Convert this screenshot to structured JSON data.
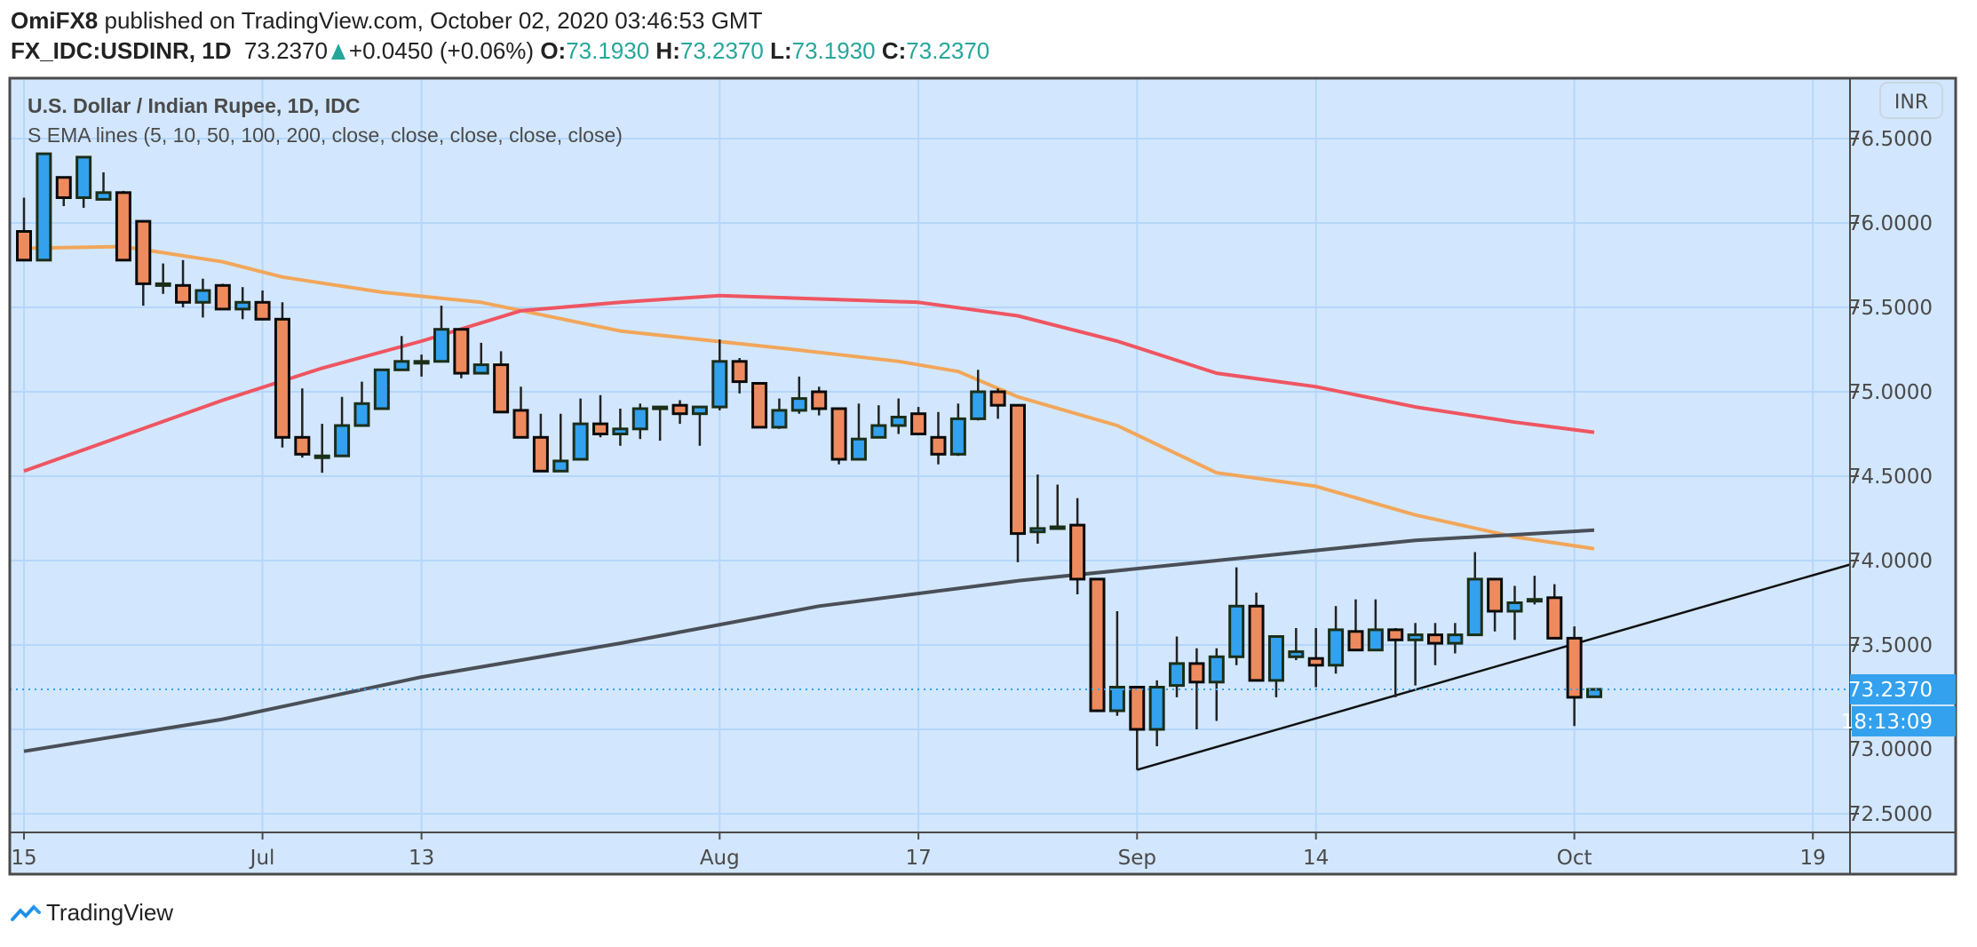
{
  "header": {
    "author": "OmiFX8",
    "published_text": "published on TradingView.com, October 02, 2020 03:46:53 GMT",
    "symbol": "FX_IDC:USDINR, 1D",
    "last": "73.2370",
    "change": "+0.0450 (+0.06%)",
    "o_label": "O:",
    "o": "73.1930",
    "h_label": "H:",
    "h": "73.2370",
    "l_label": "L:",
    "l": "73.1930",
    "c_label": "C:",
    "c": "73.2370"
  },
  "legend": {
    "title": "U.S. Dollar / Indian Rupee, 1D, IDC",
    "indicator": "S EMA lines (5, 10, 50, 100, 200, close, close, close, close, close)"
  },
  "price_axis": {
    "currency": "INR",
    "current_price_label": "73.2370",
    "countdown": "18:13:09"
  },
  "footer": {
    "brand": "TradingView"
  },
  "colors": {
    "background": "#d2e7fd",
    "grid": "#b5d6fb",
    "up": "#33a1ee",
    "down": "#ed8a5e",
    "ema_orange": "#f2a65a",
    "ema_red": "#ef5561",
    "ema_gray": "#4a4f57",
    "price_label": "#33a1ee",
    "teal": "#26a69a"
  },
  "chart_data": {
    "type": "candlestick",
    "ylim": [
      72.39,
      76.86
    ],
    "yticks": [
      "72.5000",
      "73.0000",
      "73.5000",
      "74.0000",
      "74.5000",
      "75.0000",
      "75.5000",
      "76.0000",
      "76.5000"
    ],
    "xticks": [
      {
        "date": "2020-06-15",
        "label": "15"
      },
      {
        "date": "2020-07-01",
        "label": "Jul"
      },
      {
        "date": "2020-07-13",
        "label": "13"
      },
      {
        "date": "2020-08-03",
        "label": "Aug"
      },
      {
        "date": "2020-08-17",
        "label": "17"
      },
      {
        "date": "2020-09-01",
        "label": "Sep"
      },
      {
        "date": "2020-09-14",
        "label": "14"
      },
      {
        "date": "2020-10-01",
        "label": "Oct"
      },
      {
        "date": "2020-10-19",
        "label": "19"
      }
    ],
    "grid": true,
    "candles_columns": [
      "date",
      "open",
      "high",
      "low",
      "close"
    ],
    "candles": [
      [
        "2020-06-15",
        75.95,
        76.15,
        75.78,
        75.78
      ],
      [
        "2020-06-16",
        75.78,
        76.41,
        75.78,
        76.41
      ],
      [
        "2020-06-17",
        76.27,
        76.27,
        76.1,
        76.15
      ],
      [
        "2020-06-18",
        76.15,
        76.39,
        76.09,
        76.39
      ],
      [
        "2020-06-19",
        76.14,
        76.3,
        76.14,
        76.18
      ],
      [
        "2020-06-22",
        76.18,
        76.19,
        75.78,
        75.78
      ],
      [
        "2020-06-23",
        76.01,
        76.01,
        75.51,
        75.64
      ],
      [
        "2020-06-24",
        75.64,
        75.76,
        75.58,
        75.64
      ],
      [
        "2020-06-25",
        75.63,
        75.78,
        75.5,
        75.53
      ],
      [
        "2020-06-26",
        75.53,
        75.67,
        75.44,
        75.6
      ],
      [
        "2020-06-29",
        75.63,
        75.64,
        75.49,
        75.49
      ],
      [
        "2020-06-30",
        75.49,
        75.62,
        75.43,
        75.53
      ],
      [
        "2020-07-01",
        75.53,
        75.6,
        75.43,
        75.43
      ],
      [
        "2020-07-02",
        75.43,
        75.53,
        74.67,
        74.73
      ],
      [
        "2020-07-03",
        74.73,
        75.02,
        74.61,
        74.63
      ],
      [
        "2020-07-06",
        74.62,
        74.81,
        74.52,
        74.62
      ],
      [
        "2020-07-07",
        74.62,
        74.97,
        74.62,
        74.8
      ],
      [
        "2020-07-08",
        74.8,
        75.06,
        74.8,
        74.93
      ],
      [
        "2020-07-09",
        74.9,
        75.13,
        74.9,
        75.13
      ],
      [
        "2020-07-10",
        75.13,
        75.33,
        75.13,
        75.18
      ],
      [
        "2020-07-13",
        75.18,
        75.22,
        75.09,
        75.18
      ],
      [
        "2020-07-14",
        75.18,
        75.51,
        75.18,
        75.37
      ],
      [
        "2020-07-15",
        75.37,
        75.37,
        75.08,
        75.11
      ],
      [
        "2020-07-16",
        75.11,
        75.29,
        75.11,
        75.16
      ],
      [
        "2020-07-17",
        75.16,
        75.24,
        74.88,
        74.88
      ],
      [
        "2020-07-20",
        74.89,
        75.03,
        74.73,
        74.73
      ],
      [
        "2020-07-21",
        74.73,
        74.87,
        74.53,
        74.53
      ],
      [
        "2020-07-22",
        74.53,
        74.87,
        74.53,
        74.59
      ],
      [
        "2020-07-23",
        74.6,
        74.96,
        74.6,
        74.81
      ],
      [
        "2020-07-24",
        74.81,
        74.98,
        74.73,
        74.75
      ],
      [
        "2020-07-27",
        74.75,
        74.9,
        74.68,
        74.78
      ],
      [
        "2020-07-28",
        74.78,
        74.93,
        74.72,
        74.9
      ],
      [
        "2020-07-29",
        74.91,
        74.91,
        74.71,
        74.91
      ],
      [
        "2020-07-30",
        74.92,
        74.95,
        74.81,
        74.87
      ],
      [
        "2020-07-31",
        74.87,
        74.91,
        74.68,
        74.91
      ],
      [
        "2020-08-03",
        74.91,
        75.31,
        74.89,
        75.18
      ],
      [
        "2020-08-04",
        75.18,
        75.2,
        74.99,
        75.06
      ],
      [
        "2020-08-05",
        75.05,
        75.05,
        74.79,
        74.79
      ],
      [
        "2020-08-06",
        74.79,
        74.96,
        74.78,
        74.89
      ],
      [
        "2020-08-07",
        74.89,
        75.09,
        74.87,
        74.96
      ],
      [
        "2020-08-10",
        75.0,
        75.03,
        74.86,
        74.9
      ],
      [
        "2020-08-11",
        74.9,
        74.9,
        74.57,
        74.6
      ],
      [
        "2020-08-12",
        74.6,
        74.93,
        74.6,
        74.72
      ],
      [
        "2020-08-13",
        74.73,
        74.92,
        74.73,
        74.8
      ],
      [
        "2020-08-14",
        74.8,
        74.96,
        74.75,
        74.85
      ],
      [
        "2020-08-17",
        74.87,
        74.91,
        74.75,
        74.75
      ],
      [
        "2020-08-18",
        74.73,
        74.88,
        74.57,
        74.63
      ],
      [
        "2020-08-19",
        74.63,
        74.93,
        74.62,
        74.84
      ],
      [
        "2020-08-20",
        74.84,
        75.13,
        74.83,
        75.0
      ],
      [
        "2020-08-21",
        75.0,
        75.02,
        74.84,
        74.92
      ],
      [
        "2020-08-24",
        74.92,
        74.92,
        73.99,
        74.16
      ],
      [
        "2020-08-25",
        74.17,
        74.51,
        74.1,
        74.19
      ],
      [
        "2020-08-26",
        74.2,
        74.45,
        74.2,
        74.2
      ],
      [
        "2020-08-27",
        74.21,
        74.37,
        73.8,
        73.89
      ],
      [
        "2020-08-28",
        73.89,
        73.89,
        73.11,
        73.11
      ],
      [
        "2020-08-31",
        73.11,
        73.7,
        73.08,
        73.25
      ],
      [
        "2020-09-01",
        73.25,
        73.25,
        72.76,
        73.0
      ],
      [
        "2020-09-02",
        73.0,
        73.29,
        72.9,
        73.25
      ],
      [
        "2020-09-03",
        73.26,
        73.55,
        73.19,
        73.39
      ],
      [
        "2020-09-04",
        73.39,
        73.48,
        73.0,
        73.28
      ],
      [
        "2020-09-07",
        73.28,
        73.48,
        73.05,
        73.43
      ],
      [
        "2020-09-08",
        73.43,
        73.96,
        73.38,
        73.73
      ],
      [
        "2020-09-09",
        73.73,
        73.81,
        73.29,
        73.29
      ],
      [
        "2020-09-10",
        73.29,
        73.55,
        73.19,
        73.55
      ],
      [
        "2020-09-11",
        73.43,
        73.6,
        73.41,
        73.46
      ],
      [
        "2020-09-14",
        73.42,
        73.6,
        73.25,
        73.38
      ],
      [
        "2020-09-15",
        73.38,
        73.73,
        73.33,
        73.59
      ],
      [
        "2020-09-16",
        73.58,
        73.77,
        73.47,
        73.47
      ],
      [
        "2020-09-17",
        73.47,
        73.77,
        73.47,
        73.59
      ],
      [
        "2020-09-18",
        73.59,
        73.6,
        73.19,
        73.53
      ],
      [
        "2020-09-21",
        73.53,
        73.63,
        73.26,
        73.56
      ],
      [
        "2020-09-22",
        73.56,
        73.63,
        73.38,
        73.51
      ],
      [
        "2020-09-23",
        73.51,
        73.63,
        73.45,
        73.56
      ],
      [
        "2020-09-24",
        73.56,
        74.05,
        73.56,
        73.89
      ],
      [
        "2020-09-25",
        73.89,
        73.89,
        73.58,
        73.7
      ],
      [
        "2020-09-28",
        73.7,
        73.85,
        73.53,
        73.75
      ],
      [
        "2020-09-29",
        73.76,
        73.91,
        73.74,
        73.77
      ],
      [
        "2020-09-30",
        73.78,
        73.86,
        73.54,
        73.54
      ],
      [
        "2020-10-01",
        73.54,
        73.61,
        73.02,
        73.19
      ],
      [
        "2020-10-02",
        73.193,
        73.237,
        73.193,
        73.237
      ]
    ],
    "ema_lines": [
      {
        "color": "#f2a65a",
        "points": [
          [
            "2020-06-15",
            75.85
          ],
          [
            "2020-06-22",
            75.86
          ],
          [
            "2020-06-29",
            75.77
          ],
          [
            "2020-07-02",
            75.68
          ],
          [
            "2020-07-09",
            75.59
          ],
          [
            "2020-07-16",
            75.53
          ],
          [
            "2020-07-27",
            75.36
          ],
          [
            "2020-08-06",
            75.26
          ],
          [
            "2020-08-14",
            75.18
          ],
          [
            "2020-08-19",
            75.12
          ],
          [
            "2020-08-24",
            74.97
          ],
          [
            "2020-08-31",
            74.8
          ],
          [
            "2020-09-07",
            74.52
          ],
          [
            "2020-09-14",
            74.44
          ],
          [
            "2020-09-21",
            74.27
          ],
          [
            "2020-09-28",
            74.14
          ],
          [
            "2020-10-02",
            74.07
          ]
        ]
      },
      {
        "color": "#ef5561",
        "points": [
          [
            "2020-06-15",
            74.53
          ],
          [
            "2020-06-22",
            74.74
          ],
          [
            "2020-06-29",
            74.95
          ],
          [
            "2020-07-06",
            75.14
          ],
          [
            "2020-07-13",
            75.3
          ],
          [
            "2020-07-20",
            75.48
          ],
          [
            "2020-07-27",
            75.53
          ],
          [
            "2020-08-03",
            75.57
          ],
          [
            "2020-08-10",
            75.55
          ],
          [
            "2020-08-17",
            75.53
          ],
          [
            "2020-08-24",
            75.45
          ],
          [
            "2020-08-31",
            75.3
          ],
          [
            "2020-09-07",
            75.11
          ],
          [
            "2020-09-14",
            75.03
          ],
          [
            "2020-09-21",
            74.91
          ],
          [
            "2020-09-28",
            74.82
          ],
          [
            "2020-10-02",
            74.76
          ]
        ]
      },
      {
        "color": "#4a4f57",
        "points": [
          [
            "2020-06-15",
            72.87
          ],
          [
            "2020-06-29",
            73.06
          ],
          [
            "2020-07-13",
            73.31
          ],
          [
            "2020-07-27",
            73.51
          ],
          [
            "2020-08-10",
            73.73
          ],
          [
            "2020-08-24",
            73.88
          ],
          [
            "2020-09-07",
            74.0
          ],
          [
            "2020-09-21",
            74.12
          ],
          [
            "2020-10-02",
            74.18
          ]
        ]
      }
    ],
    "trendline": [
      [
        "2020-09-01",
        72.76
      ],
      [
        "2020-10-02",
        73.54
      ]
    ],
    "last_price": 73.237
  }
}
